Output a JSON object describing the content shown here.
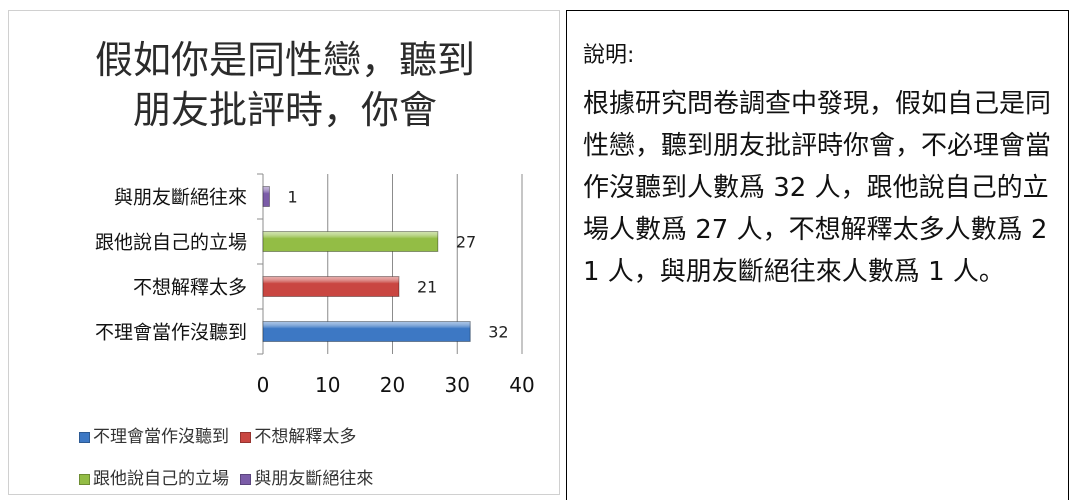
{
  "chart_data": {
    "type": "bar",
    "orientation": "horizontal",
    "title": "假如你是同性戀，聽到\n朋友批評時，你會",
    "categories": [
      "不理會當作沒聽到",
      "不想解釋太多",
      "跟他說自己的立場",
      "與朋友斷絕往來"
    ],
    "values": [
      32,
      21,
      27,
      1
    ],
    "colors": [
      "#3d78c4",
      "#c94641",
      "#93bd45",
      "#7b5ca8"
    ],
    "xlim": [
      0,
      40
    ],
    "xticks": [
      0,
      10,
      20,
      30,
      40
    ],
    "grid": true,
    "legend_position": "bottom"
  },
  "description": {
    "label": "說明:",
    "text": "根據研究問卷調查中發現，假如自己是同性戀，聽到朋友批評時你會，不必理會當作沒聽到人數爲 32 人，跟他說自己的立場人數爲 27 人，不想解釋太多人數爲 21 人，與朋友斷絕往來人數爲 1 人。"
  }
}
